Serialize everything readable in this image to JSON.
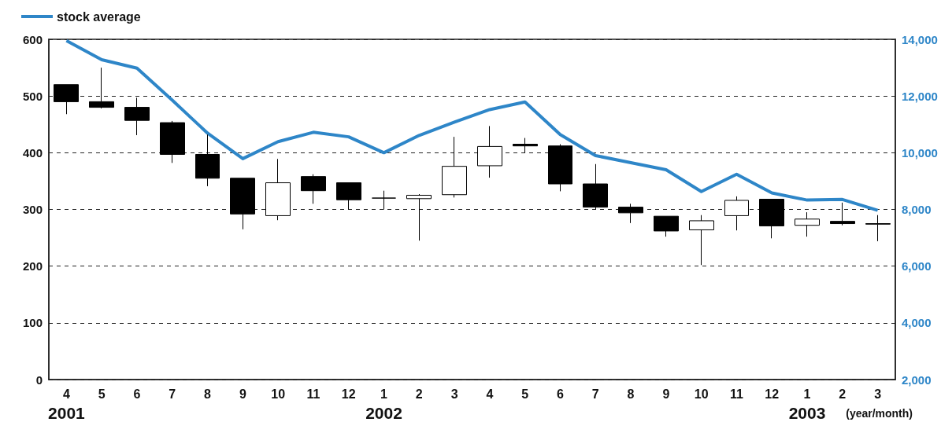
{
  "chart_data": {
    "type": "candlestick",
    "categories": [
      "4\n2001",
      "5",
      "6",
      "7",
      "8",
      "9",
      "10",
      "11",
      "12",
      "1\n2002",
      "2",
      "3",
      "4",
      "5",
      "6",
      "7",
      "8",
      "9",
      "10",
      "11",
      "12",
      "1\n2003",
      "2",
      "3"
    ],
    "series": [
      {
        "color": "#000000",
        "ohlc": [
          [
            520,
            520,
            468,
            490
          ],
          [
            490,
            550,
            478,
            480
          ],
          [
            480,
            497,
            431,
            457
          ],
          [
            453,
            456,
            382,
            397
          ],
          [
            397,
            432,
            341,
            355
          ],
          [
            355,
            355,
            265,
            292
          ],
          [
            289,
            389,
            281,
            347
          ],
          [
            358,
            362,
            310,
            333
          ],
          [
            347,
            347,
            300,
            317
          ],
          [
            320,
            333,
            300,
            320
          ],
          [
            319,
            327,
            245,
            325
          ],
          [
            326,
            428,
            321,
            376
          ],
          [
            377,
            447,
            356,
            411
          ],
          [
            415,
            426,
            400,
            412
          ],
          [
            412,
            415,
            332,
            345
          ],
          [
            345,
            380,
            300,
            304
          ],
          [
            304,
            310,
            276,
            294
          ],
          [
            288,
            288,
            252,
            262
          ],
          [
            264,
            290,
            202,
            280
          ],
          [
            289,
            323,
            263,
            316
          ],
          [
            318,
            318,
            249,
            271
          ],
          [
            272,
            295,
            252,
            283
          ],
          [
            279,
            312,
            272,
            275
          ],
          [
            275,
            290,
            244,
            274
          ]
        ]
      },
      {
        "type": "line",
        "name": "stock average",
        "axis": "y2",
        "color": "#2e86c8",
        "values": [
          13950,
          13280,
          12980,
          11850,
          10690,
          9790,
          10390,
          10720,
          10560,
          10000,
          10610,
          11080,
          11520,
          11790,
          10640,
          9900,
          9650,
          9400,
          8630,
          9240,
          8580,
          8330,
          8350,
          7970
        ]
      }
    ],
    "ylim": [
      0,
      600
    ],
    "yticks": [
      0,
      100,
      200,
      300,
      400,
      500,
      600
    ],
    "y2lim": [
      2000,
      14000
    ],
    "y2ticks": [
      {
        "value": 2000,
        "label": "2,000"
      },
      {
        "value": 4000,
        "label": "4,000"
      },
      {
        "value": 6000,
        "label": "6,000"
      },
      {
        "value": 8000,
        "label": "8,000"
      },
      {
        "value": 10000,
        "label": "10,000"
      },
      {
        "value": 12000,
        "label": "12,000"
      },
      {
        "value": 14000,
        "label": "14,000"
      }
    ],
    "grid": "y",
    "legend": "top left",
    "marker": "none",
    "annotations": [
      "(year/month)"
    ]
  }
}
